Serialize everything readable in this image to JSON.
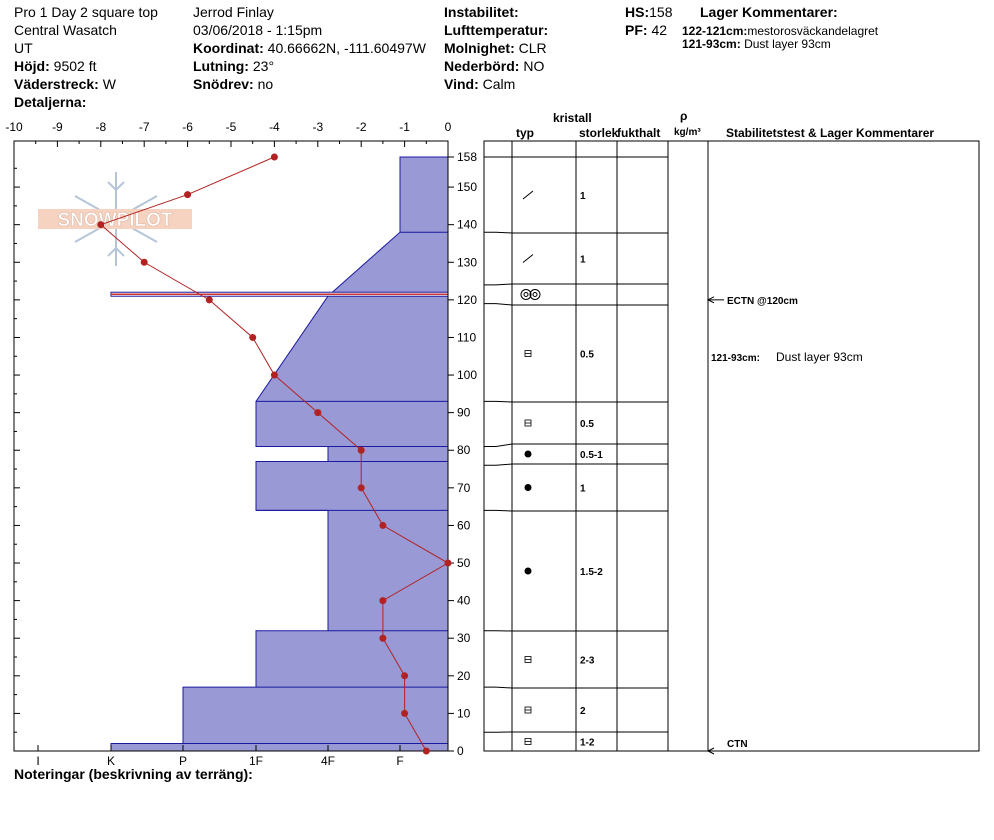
{
  "header": {
    "location_line": "Pro 1 Day 2 square top",
    "range": "Central Wasatch",
    "state": "UT",
    "elevation_label": "Höjd:",
    "elevation_value": "9502 ft",
    "aspect_label": "Väderstreck:",
    "aspect_value": "W",
    "details_label": "Detaljerna:",
    "observer": "Jerrod Finlay",
    "datetime": "03/06/2018 - 1:15pm",
    "coord_label": "Koordinat:",
    "coord_value": "40.66662N, -111.60497W",
    "slope_label": "Lutning:",
    "slope_value": "23°",
    "drift_label": "Snödrev:",
    "drift_value": "no",
    "instability_label": "Instabilitet:",
    "air_temp_label": "Lufttemperatur:",
    "sky_label": "Molnighet:",
    "sky_value": "CLR",
    "precip_label": "Nederbörd:",
    "precip_value": "NO",
    "wind_label": "Vind:",
    "wind_value": "Calm",
    "hs_label": "HS:",
    "hs_value": "158",
    "pf_label": "PF:",
    "pf_value": "42",
    "layer_comments_title": "Lager Kommentarer:",
    "layer_comments": [
      {
        "range": "122-121cm:",
        "text": "mestorosväckandelagret"
      },
      {
        "range": "121-93cm:",
        "text": "Dust layer 93cm"
      }
    ],
    "notes_label": "Noteringar (beskrivning av terräng):"
  },
  "logo": {
    "text": "SNOWPILOT"
  },
  "columns": {
    "crystal": "kristall",
    "type": "typ",
    "size": "storlek",
    "moisture": "fukthalt",
    "rho": "ρ",
    "density_unit": "kg/m³",
    "stability": "Stabilitetstest & Lager Kommentarer"
  },
  "colors": {
    "hardness_fill": "#9999d6",
    "hardness_stroke": "#1a1aa0",
    "temp_line": "#b22222",
    "weak_layer": "#cc3333"
  },
  "chart_data": {
    "type": "snow-profile",
    "depth_ticks": [
      0,
      10,
      20,
      30,
      40,
      50,
      60,
      70,
      80,
      90,
      100,
      110,
      120,
      130,
      140,
      150,
      158
    ],
    "temp_ticks": [
      -10,
      -9,
      -8,
      -7,
      -6,
      -5,
      -4,
      -3,
      -2,
      -1,
      0
    ],
    "temp_range": [
      -10,
      0
    ],
    "depth_range": [
      0,
      158
    ],
    "hardness_labels": [
      "I",
      "K",
      "P",
      "1F",
      "4F",
      "F"
    ],
    "hardness_levels": [
      "F",
      "4F",
      "1F",
      "P",
      "K",
      "I"
    ],
    "temperature": [
      {
        "depth": 158,
        "temp": -4
      },
      {
        "depth": 148,
        "temp": -6
      },
      {
        "depth": 140,
        "temp": -8
      },
      {
        "depth": 130,
        "temp": -7
      },
      {
        "depth": 120,
        "temp": -5.5
      },
      {
        "depth": 110,
        "temp": -4.5
      },
      {
        "depth": 100,
        "temp": -4
      },
      {
        "depth": 90,
        "temp": -3
      },
      {
        "depth": 80,
        "temp": -2
      },
      {
        "depth": 70,
        "temp": -2
      },
      {
        "depth": 60,
        "temp": -1.5
      },
      {
        "depth": 50,
        "temp": 0
      },
      {
        "depth": 40,
        "temp": -1.5
      },
      {
        "depth": 30,
        "temp": -1.5
      },
      {
        "depth": 20,
        "temp": -1
      },
      {
        "depth": 10,
        "temp": -1
      },
      {
        "depth": 0,
        "temp": -0.5
      }
    ],
    "hardness_profile": [
      {
        "depth": 158,
        "hardness": "F"
      },
      {
        "depth": 138,
        "hardness": "F"
      },
      {
        "depth": 121,
        "hardness": "1F-4F"
      },
      {
        "depth": 93,
        "hardness": "1F"
      },
      {
        "depth": 81,
        "hardness": "1F"
      },
      {
        "depth": 81,
        "hardness": "4F"
      },
      {
        "depth": 77,
        "hardness": "4F"
      },
      {
        "depth": 77,
        "hardness": "1F"
      },
      {
        "depth": 64,
        "hardness": "1F"
      },
      {
        "depth": 64,
        "hardness": "4F"
      },
      {
        "depth": 32,
        "hardness": "4F"
      },
      {
        "depth": 32,
        "hardness": "1F"
      },
      {
        "depth": 17,
        "hardness": "1F"
      },
      {
        "depth": 17,
        "hardness": "P"
      },
      {
        "depth": 2,
        "hardness": "P"
      },
      {
        "depth": 2,
        "hardness": "K"
      },
      {
        "depth": 0,
        "hardness": "K"
      }
    ],
    "weak_layer_depth": 121.5,
    "layers": [
      {
        "top": 158,
        "bottom": 138,
        "grain": "decomposing",
        "size": "1"
      },
      {
        "top": 138,
        "bottom": 124,
        "grain": "decomposing",
        "size": "1"
      },
      {
        "top": 124,
        "bottom": 119,
        "grain": "surface-hoar",
        "size": ""
      },
      {
        "top": 119,
        "bottom": 93,
        "grain": "faceted",
        "size": "0.5"
      },
      {
        "top": 93,
        "bottom": 81,
        "grain": "faceted",
        "size": "0.5"
      },
      {
        "top": 81,
        "bottom": 76,
        "grain": "melt-form",
        "size": "0.5-1"
      },
      {
        "top": 76,
        "bottom": 64,
        "grain": "melt-form",
        "size": "1"
      },
      {
        "top": 64,
        "bottom": 32,
        "grain": "melt-form",
        "size": "1.5-2"
      },
      {
        "top": 32,
        "bottom": 17,
        "grain": "faceted",
        "size": "2-3"
      },
      {
        "top": 17,
        "bottom": 5,
        "grain": "faceted",
        "size": "2"
      },
      {
        "top": 5,
        "bottom": 0,
        "grain": "faceted",
        "size": "1-2"
      }
    ],
    "tests": [
      {
        "depth": 120,
        "label": "ECTN @120cm"
      },
      {
        "depth": 0,
        "label": "CTN"
      }
    ],
    "layer_note": {
      "depth": 104,
      "range": "121-93cm:",
      "text": "Dust layer 93cm"
    }
  }
}
